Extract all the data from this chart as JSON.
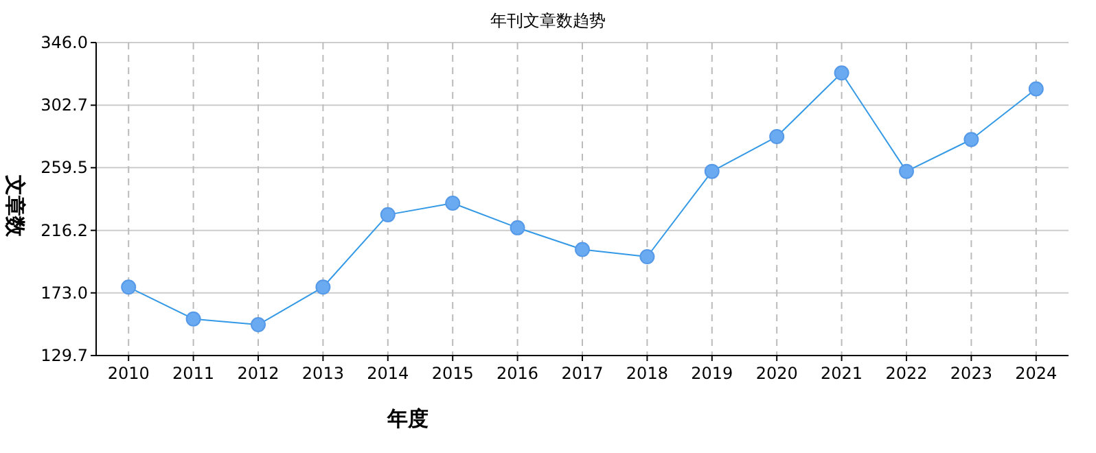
{
  "chart_data": {
    "type": "line",
    "title": "年刊文章数趋势",
    "xlabel": "年度",
    "ylabel": "文章数",
    "categories": [
      "2010",
      "2011",
      "2012",
      "2013",
      "2014",
      "2015",
      "2016",
      "2017",
      "2018",
      "2019",
      "2020",
      "2021",
      "2022",
      "2023",
      "2024"
    ],
    "series": [
      {
        "color": "#3399e6",
        "values": [
          177,
          155,
          151,
          177,
          227,
          235,
          218,
          203,
          198,
          257,
          281,
          325,
          257,
          279,
          314
        ]
      }
    ],
    "ylim": [
      129.7,
      346.0
    ],
    "yticks": [
      {
        "value": 129.7,
        "label": "129.7"
      },
      {
        "value": 173.0,
        "label": "173.0"
      },
      {
        "value": 216.2,
        "label": "216.2"
      },
      {
        "value": 259.5,
        "label": "259.5"
      },
      {
        "value": 302.7,
        "label": "302.7"
      },
      {
        "value": 346.0,
        "label": "346.0"
      }
    ],
    "grid": true,
    "marker": "circle",
    "line_style": "solid"
  }
}
